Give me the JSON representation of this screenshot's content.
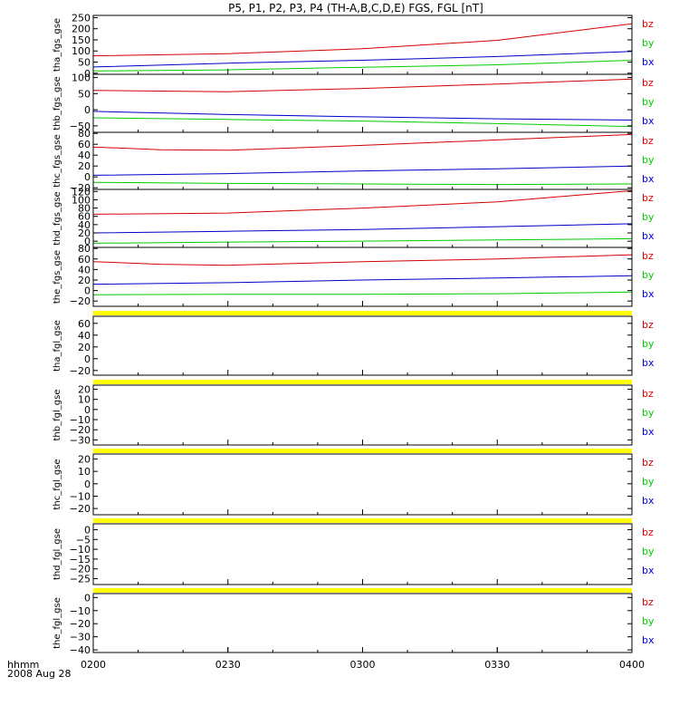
{
  "colors": {
    "bz": "#d40000",
    "by": "#00cc00",
    "bx": "#0000cc",
    "flag": "#ffff00",
    "axis": "#000000"
  },
  "chart_data": {
    "type": "line",
    "title": "P5, P1, P2, P3, P4 (TH-A,B,C,D,E) FGS, FGL [nT]",
    "x_ticks": [
      "0200",
      "0230",
      "0300",
      "0330",
      "0400"
    ],
    "x_range": [
      "0200",
      "0400"
    ],
    "x_label_line1": "hhmm",
    "x_label_line2": "2008 Aug 28",
    "grid": false,
    "legend": "right of each panel",
    "panels": [
      {
        "ylabel": "tha_fgs_gse",
        "ylim": [
          -5,
          260
        ],
        "ticks": [
          250,
          200,
          150,
          100,
          50,
          0
        ],
        "tick_labels": [
          "250",
          "200",
          "150",
          "100",
          "50",
          "0"
        ],
        "flag_bar": false,
        "legend": [
          "bz",
          "by",
          "bx"
        ],
        "series": [
          {
            "name": "bz",
            "x": [
              "0200",
              "0230",
              "0300",
              "0330",
              "0400"
            ],
            "values": [
              78,
              88,
              110,
              148,
              222
            ]
          },
          {
            "name": "by",
            "x": [
              "0200",
              "0230",
              "0300",
              "0330",
              "0400"
            ],
            "values": [
              10,
              15,
              27,
              38,
              58
            ]
          },
          {
            "name": "bx",
            "x": [
              "0200",
              "0230",
              "0300",
              "0330",
              "0400"
            ],
            "values": [
              28,
              45,
              58,
              75,
              98
            ]
          }
        ]
      },
      {
        "ylabel": "thb_fgs_gse",
        "ylim": [
          -70,
          110
        ],
        "ticks": [
          100,
          50,
          0,
          -50
        ],
        "tick_labels": [
          "100",
          "50",
          "0",
          "−50"
        ],
        "flag_bar": false,
        "legend": [
          "bz",
          "by",
          "bx"
        ],
        "series": [
          {
            "name": "bz",
            "x": [
              "0200",
              "0230",
              "0300",
              "0330",
              "0400"
            ],
            "values": [
              60,
              56,
              66,
              80,
              95
            ]
          },
          {
            "name": "by",
            "x": [
              "0200",
              "0230",
              "0300",
              "0330",
              "0400"
            ],
            "values": [
              -25,
              -30,
              -35,
              -43,
              -52
            ]
          },
          {
            "name": "bx",
            "x": [
              "0200",
              "0230",
              "0300",
              "0330",
              "0400"
            ],
            "values": [
              -5,
              -15,
              -22,
              -28,
              -32
            ]
          }
        ]
      },
      {
        "ylabel": "thc_fgs_gse",
        "ylim": [
          -23,
          82
        ],
        "ticks": [
          80,
          60,
          40,
          20,
          0,
          -20
        ],
        "tick_labels": [
          "80",
          "60",
          "40",
          "20",
          "0",
          "−20"
        ],
        "flag_bar": false,
        "legend": [
          "bz",
          "by",
          "bx"
        ],
        "series": [
          {
            "name": "bz",
            "x": [
              "0200",
              "0215",
              "0230",
              "0300",
              "0330",
              "0400"
            ],
            "values": [
              55,
              50,
              49,
              58,
              68,
              78
            ]
          },
          {
            "name": "by",
            "x": [
              "0200",
              "0230",
              "0300",
              "0330",
              "0400"
            ],
            "values": [
              -10,
              -12,
              -13,
              -14,
              -13
            ]
          },
          {
            "name": "bx",
            "x": [
              "0200",
              "0230",
              "0300",
              "0330",
              "0400"
            ],
            "values": [
              3,
              6,
              11,
              15,
              20
            ]
          }
        ]
      },
      {
        "ylabel": "thd_fgs_gse",
        "ylim": [
          -15,
          125
        ],
        "ticks": [
          120,
          100,
          80,
          60,
          40,
          20,
          0
        ],
        "tick_labels": [
          "120",
          "100",
          "80",
          "60",
          "40",
          "20",
          "0"
        ],
        "flag_bar": false,
        "legend": [
          "bz",
          "by",
          "bx"
        ],
        "series": [
          {
            "name": "bz",
            "x": [
              "0200",
              "0230",
              "0300",
              "0330",
              "0400"
            ],
            "values": [
              65,
              68,
              80,
              95,
              122
            ]
          },
          {
            "name": "by",
            "x": [
              "0200",
              "0230",
              "0300",
              "0330",
              "0400"
            ],
            "values": [
              -5,
              -2,
              0,
              3,
              6
            ]
          },
          {
            "name": "bx",
            "x": [
              "0200",
              "0230",
              "0300",
              "0330",
              "0400"
            ],
            "values": [
              20,
              24,
              28,
              35,
              42
            ]
          }
        ]
      },
      {
        "ylabel": "the_fgs_gse",
        "ylim": [
          -30,
          82
        ],
        "ticks": [
          80,
          60,
          40,
          20,
          0,
          -20
        ],
        "tick_labels": [
          "80",
          "60",
          "40",
          "20",
          "0",
          "−20"
        ],
        "flag_bar": false,
        "legend": [
          "bz",
          "by",
          "bx"
        ],
        "series": [
          {
            "name": "bz",
            "x": [
              "0200",
              "0215",
              "0230",
              "0300",
              "0330",
              "0400"
            ],
            "values": [
              55,
              50,
              48,
              55,
              60,
              68
            ]
          },
          {
            "name": "by",
            "x": [
              "0200",
              "0230",
              "0300",
              "0330",
              "0400"
            ],
            "values": [
              -8,
              -7,
              -7,
              -6,
              -3
            ]
          },
          {
            "name": "bx",
            "x": [
              "0200",
              "0230",
              "0300",
              "0330",
              "0400"
            ],
            "values": [
              12,
              15,
              20,
              24,
              28
            ]
          }
        ]
      },
      {
        "ylabel": "tha_fgl_gse",
        "ylim": [
          -28,
          72
        ],
        "ticks": [
          60,
          40,
          20,
          0,
          -20
        ],
        "tick_labels": [
          "60",
          "40",
          "20",
          "0",
          "−20"
        ],
        "flag_bar": true,
        "legend": [
          "bz",
          "by",
          "bx"
        ],
        "series": []
      },
      {
        "ylabel": "thb_fgl_gse",
        "ylim": [
          -35,
          24
        ],
        "ticks": [
          20,
          10,
          0,
          -10,
          -20,
          -30
        ],
        "tick_labels": [
          "20",
          "10",
          "0",
          "−10",
          "−20",
          "−30"
        ],
        "flag_bar": true,
        "legend": [
          "bz",
          "by",
          "bx"
        ],
        "series": []
      },
      {
        "ylabel": "thc_fgl_gse",
        "ylim": [
          -25,
          24
        ],
        "ticks": [
          20,
          10,
          0,
          -10,
          -20
        ],
        "tick_labels": [
          "20",
          "10",
          "0",
          "−10",
          "−20"
        ],
        "flag_bar": true,
        "legend": [
          "bz",
          "by",
          "bx"
        ],
        "series": []
      },
      {
        "ylabel": "thd_fgl_gse",
        "ylim": [
          -28,
          3
        ],
        "ticks": [
          0,
          -5,
          -10,
          -15,
          -20,
          -25
        ],
        "tick_labels": [
          "0",
          "−5",
          "−10",
          "−15",
          "−20",
          "−25"
        ],
        "flag_bar": true,
        "legend": [
          "bz",
          "by",
          "bx"
        ],
        "series": []
      },
      {
        "ylabel": "the_fgl_gse",
        "ylim": [
          -42,
          3
        ],
        "ticks": [
          0,
          -10,
          -20,
          -30,
          -40
        ],
        "tick_labels": [
          "0",
          "−10",
          "−20",
          "−30",
          "−40"
        ],
        "flag_bar": true,
        "legend": [
          "bz",
          "by",
          "bx"
        ],
        "series": []
      }
    ]
  }
}
